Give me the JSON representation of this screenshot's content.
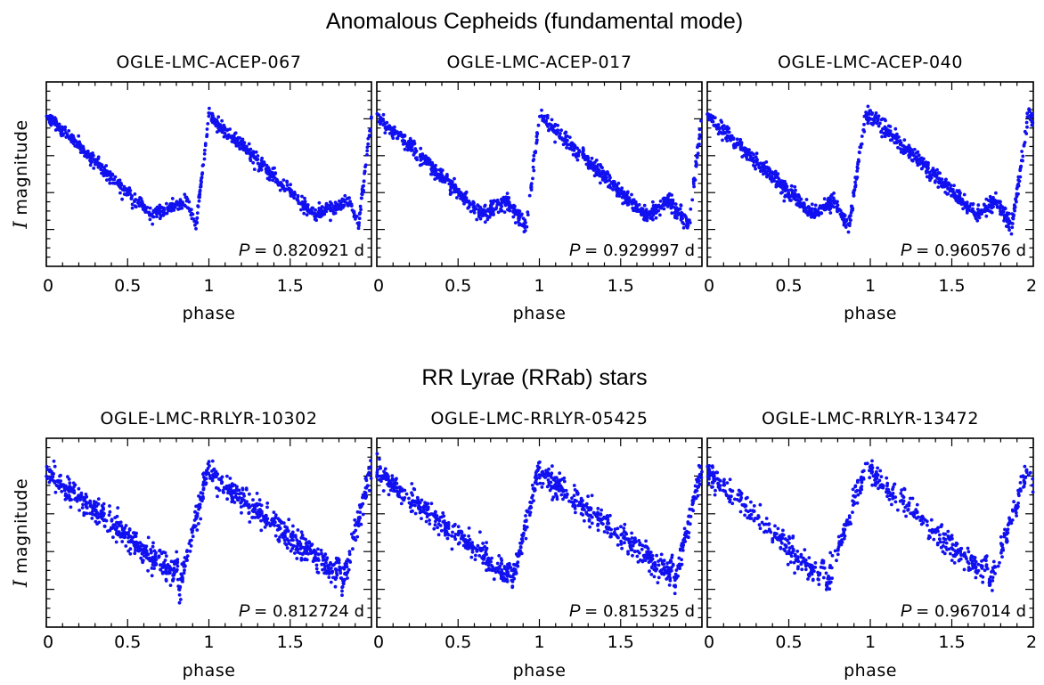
{
  "sections": [
    {
      "title": "Anomalous Cepheids (fundamental mode)"
    },
    {
      "title": "RR Lyrae (RRab) stars"
    }
  ],
  "colors": {
    "points": "#1010f0",
    "frame": "#000000"
  },
  "chart_data": [
    {
      "type": "scatter",
      "title": "OGLE-LMC-ACEP-067",
      "xlabel": "phase",
      "ylabel_symbol": "I",
      "ylabel_text": "magnitude",
      "xlim": [
        0,
        2
      ],
      "xticks": [
        "0",
        "0.5",
        "1",
        "1.5"
      ],
      "period_symbol": "P",
      "period_text": "= 0.820921 d",
      "curve": {
        "min_phase": 0.65,
        "bump_phase": 0.87,
        "dip_phase": 0.92,
        "rise_end": 1.0,
        "scatter": 0.03,
        "n": 420
      }
    },
    {
      "type": "scatter",
      "title": "OGLE-LMC-ACEP-017",
      "xlabel": "phase",
      "ylabel_symbol": "I",
      "ylabel_text": "magnitude",
      "xlim": [
        0,
        2
      ],
      "xticks": [
        "0",
        "0.5",
        "1",
        "1.5"
      ],
      "period_symbol": "P",
      "period_text": "= 0.929997 d",
      "curve": {
        "min_phase": 0.65,
        "bump_phase": 0.8,
        "dip_phase": 0.92,
        "rise_end": 1.0,
        "scatter": 0.035,
        "n": 480
      }
    },
    {
      "type": "scatter",
      "title": "OGLE-LMC-ACEP-040",
      "xlabel": "phase",
      "ylabel_symbol": "I",
      "ylabel_text": "magnitude",
      "xlim": [
        0,
        2
      ],
      "xticks": [
        "0",
        "0.5",
        "1",
        "1.5",
        "2"
      ],
      "period_symbol": "P",
      "period_text": "= 0.960576 d",
      "curve": {
        "min_phase": 0.65,
        "bump_phase": 0.77,
        "dip_phase": 0.87,
        "rise_end": 0.97,
        "scatter": 0.035,
        "n": 480
      }
    },
    {
      "type": "scatter",
      "title": "OGLE-LMC-RRLYR-10302",
      "xlabel": "phase",
      "ylabel_symbol": "I",
      "ylabel_text": "magnitude",
      "xlim": [
        0,
        2
      ],
      "xticks": [
        "0",
        "0.5",
        "1",
        "1.5"
      ],
      "period_symbol": "P",
      "period_text": "= 0.812724 d",
      "curve": {
        "min_phase": 0.78,
        "bump_phase": 0.8,
        "dip_phase": 0.82,
        "rise_end": 0.99,
        "scatter": 0.06,
        "n": 480
      }
    },
    {
      "type": "scatter",
      "title": "OGLE-LMC-RRLYR-05425",
      "xlabel": "phase",
      "ylabel_symbol": "I",
      "ylabel_text": "magnitude",
      "xlim": [
        0,
        2
      ],
      "xticks": [
        "0",
        "0.5",
        "1",
        "1.5"
      ],
      "period_symbol": "P",
      "period_text": "= 0.815325 d",
      "curve": {
        "min_phase": 0.8,
        "bump_phase": 0.82,
        "dip_phase": 0.83,
        "rise_end": 0.99,
        "scatter": 0.055,
        "n": 440
      }
    },
    {
      "type": "scatter",
      "title": "OGLE-LMC-RRLYR-13472",
      "xlabel": "phase",
      "ylabel_symbol": "I",
      "ylabel_text": "magnitude",
      "xlim": [
        0,
        2
      ],
      "xticks": [
        "0",
        "0.5",
        "1",
        "1.5",
        "2"
      ],
      "period_symbol": "P",
      "period_text": "= 0.967014 d",
      "curve": {
        "min_phase": 0.68,
        "bump_phase": 0.71,
        "dip_phase": 0.73,
        "rise_end": 0.96,
        "scatter": 0.055,
        "n": 340
      }
    }
  ]
}
